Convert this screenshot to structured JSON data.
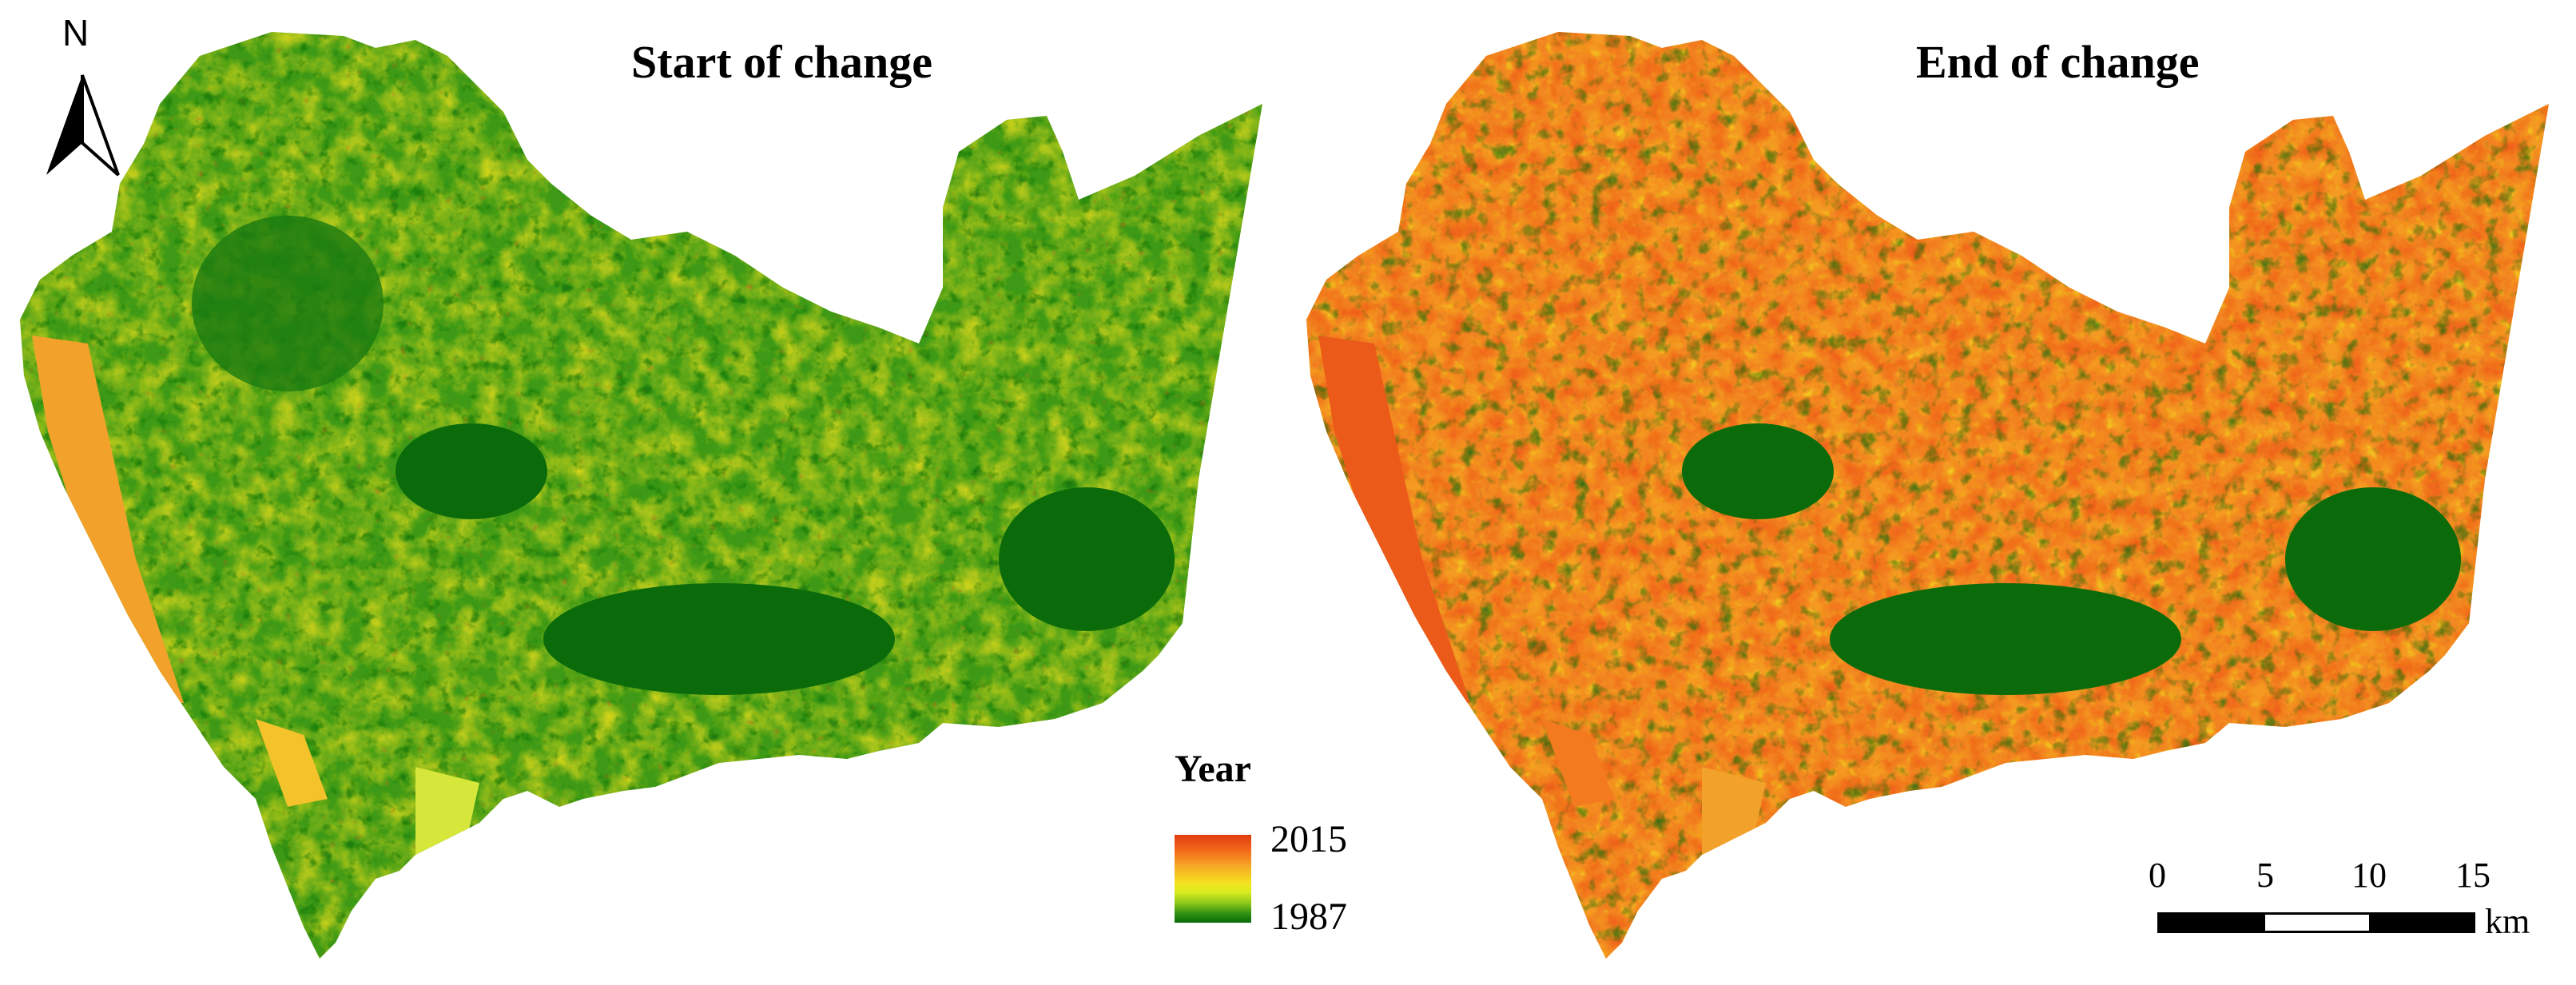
{
  "figure": {
    "panels": [
      {
        "title": "Start of change"
      },
      {
        "title": "End of change"
      }
    ],
    "north_arrow": {
      "label": "N"
    },
    "legend": {
      "title": "Year",
      "max_label": "2015",
      "min_label": "1987",
      "ramp_colors": [
        "#e23a10",
        "#f7a726",
        "#f4e21f",
        "#8cc61a",
        "#0b6b0b"
      ]
    },
    "scale_bar": {
      "ticks": [
        "0",
        "5",
        "10",
        "15"
      ],
      "unit": "km"
    }
  },
  "colors": {
    "dark_green": "#0b6b0b",
    "green": "#2e8f12",
    "yellow_green": "#9acd1c",
    "yellow": "#f2e41c",
    "orange": "#f49a22",
    "red": "#e23a10"
  }
}
